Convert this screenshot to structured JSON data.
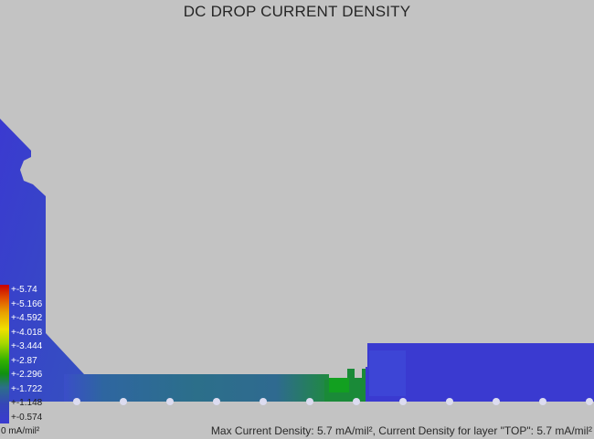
{
  "title": "DC DROP CURRENT DENSITY",
  "legend": {
    "labels": [
      "+-5.74",
      "+-5.166",
      "+-4.592",
      "+-4.018",
      "+-3.444",
      "+-2.87",
      "+-2.296",
      "+-1.722",
      "+-1.148",
      "+-0.574",
      "0 mA/mil²"
    ],
    "min_label": "0 mA/mil²"
  },
  "status_text": "Max Current Density: 5.7 mA/mil², Current Density for layer \"TOP\": 5.7 mA/mil²",
  "colors": {
    "background": "#c3c3c3",
    "copper_low": "#3a3ad0",
    "copper_mid": "#2c6f8a",
    "copper_high": "#109010"
  }
}
